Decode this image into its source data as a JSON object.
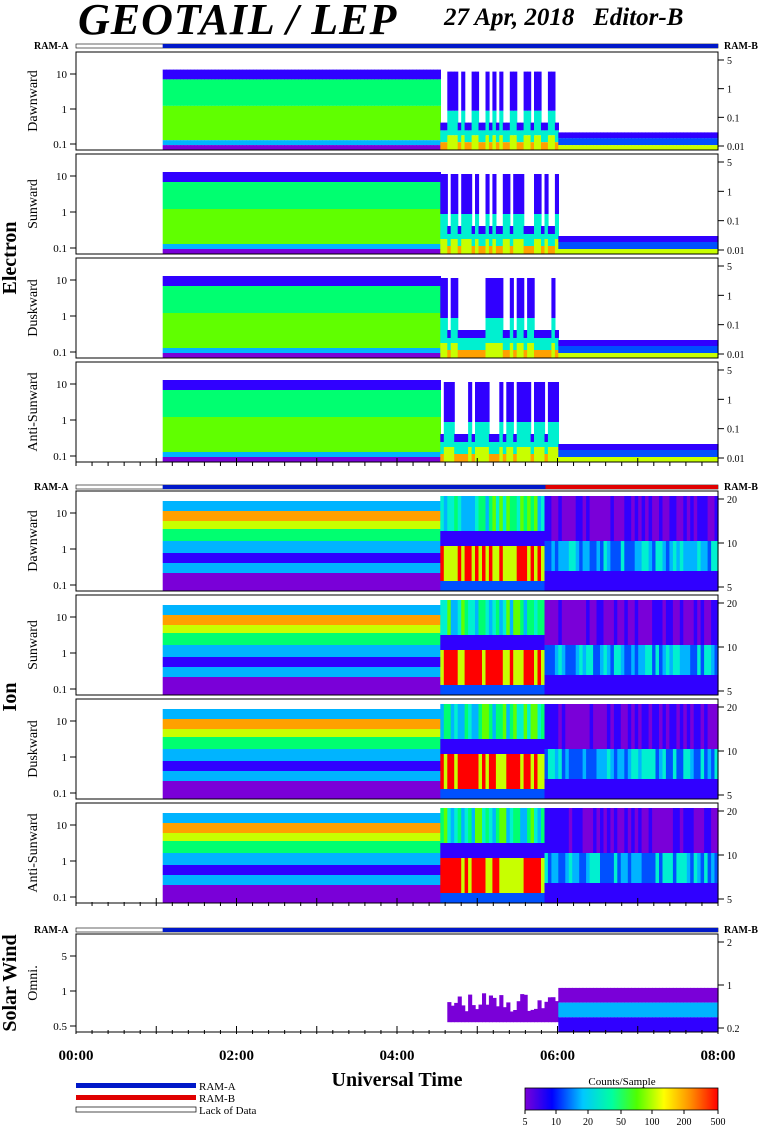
{
  "header": {
    "title": "GEOTAIL / LEP",
    "date": "27 Apr, 2018",
    "editor": "Editor-B"
  },
  "chart_data": {
    "type": "heatmap",
    "xlabel": "Universal Time",
    "x_ticks": [
      "00:00",
      "02:00",
      "04:00",
      "06:00",
      "08:00"
    ],
    "xlim_hours": [
      0,
      8
    ],
    "data_start_hour": 1.08,
    "colorbar": {
      "label": "Counts/Sample",
      "ticks": [
        "5",
        "10",
        "20",
        "50",
        "100",
        "200",
        "500"
      ],
      "colors": [
        "#7a00d8",
        "#0000ff",
        "#00c8ff",
        "#00ffa0",
        "#50ff00",
        "#ffff00",
        "#ff8c00",
        "#ff0000"
      ]
    },
    "status_legend": {
      "ram_a": "RAM-A",
      "ram_b": "RAM-B",
      "lack": "Lack of Data",
      "ram_a_color": "#0018c8",
      "ram_b_color": "#e00000"
    },
    "groups": [
      {
        "name": "Electron",
        "ram_left": "RAM-A",
        "ram_right": "RAM-B",
        "panels": [
          {
            "name": "Dawnward",
            "left_ticks": [
              "10",
              "1",
              "0.1"
            ],
            "right_ticks": [
              "5",
              "1",
              "0.1",
              "0.01"
            ]
          },
          {
            "name": "Sunward",
            "left_ticks": [
              "10",
              "1",
              "0.1"
            ],
            "right_ticks": [
              "5",
              "1",
              "0.1",
              "0.01"
            ]
          },
          {
            "name": "Duskward",
            "left_ticks": [
              "10",
              "1",
              "0.1"
            ],
            "right_ticks": [
              "5",
              "1",
              "0.1",
              "0.01"
            ]
          },
          {
            "name": "Anti-Sunward",
            "left_ticks": [
              "10",
              "1",
              "0.1"
            ],
            "right_ticks": [
              "5",
              "1",
              "0.1",
              "0.01"
            ]
          }
        ]
      },
      {
        "name": "Ion",
        "ram_left": "RAM-A",
        "ram_right": "RAM-B",
        "panels": [
          {
            "name": "Dawnward",
            "left_ticks": [
              "10",
              "1",
              "0.1"
            ],
            "right_ticks": [
              "20",
              "10",
              "5"
            ]
          },
          {
            "name": "Sunward",
            "left_ticks": [
              "10",
              "1",
              "0.1"
            ],
            "right_ticks": [
              "20",
              "10",
              "5"
            ]
          },
          {
            "name": "Duskward",
            "left_ticks": [
              "10",
              "1",
              "0.1"
            ],
            "right_ticks": [
              "20",
              "10",
              "5"
            ]
          },
          {
            "name": "Anti-Sunward",
            "left_ticks": [
              "10",
              "1",
              "0.1"
            ],
            "right_ticks": [
              "20",
              "10",
              "5"
            ]
          }
        ]
      },
      {
        "name": "Solar Wind",
        "ram_left": "RAM-A",
        "ram_right": "RAM-B",
        "panels": [
          {
            "name": "Omni.",
            "left_ticks": [
              "5",
              "1",
              "0.5"
            ],
            "right_ticks": [
              "2",
              "1",
              "0.2"
            ]
          }
        ]
      }
    ]
  }
}
